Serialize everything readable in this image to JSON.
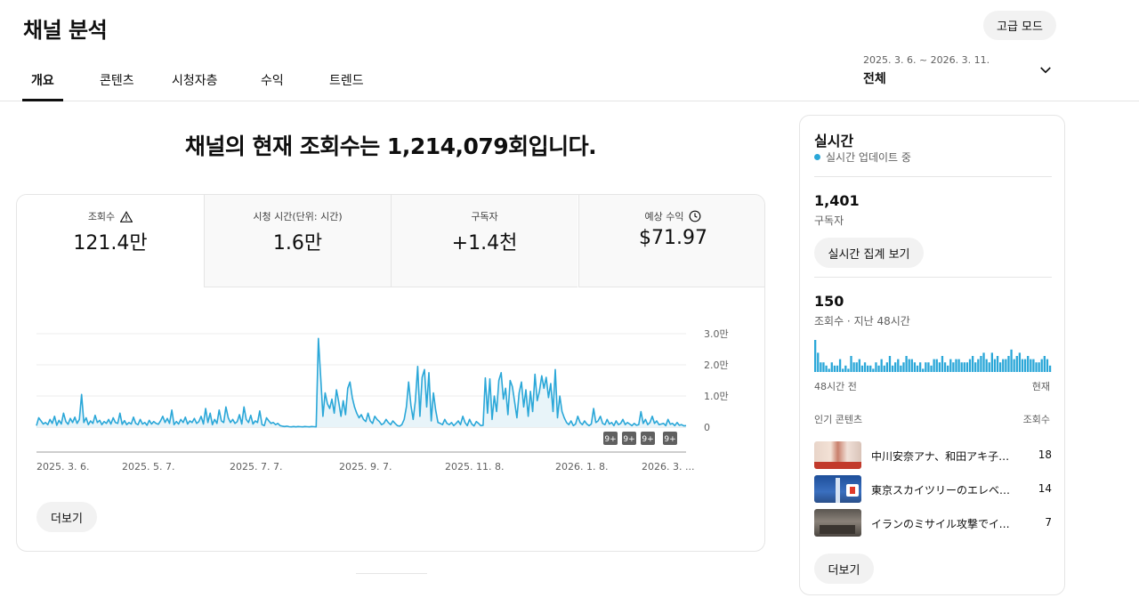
{
  "header": {
    "title": "채널 분석",
    "advanced_mode": "고급 모드",
    "date_range": "2025. 3. 6. ~ 2026. 3. 11.",
    "date_scope": "전체"
  },
  "tabs": [
    {
      "label": "개요",
      "active": true
    },
    {
      "label": "콘텐츠",
      "active": false
    },
    {
      "label": "시청자층",
      "active": false
    },
    {
      "label": "수익",
      "active": false
    },
    {
      "label": "트렌드",
      "active": false
    }
  ],
  "headline": "채널의 현재 조회수는 1,214,079회입니다.",
  "metrics": [
    {
      "label": "조회수",
      "value": "121.4만",
      "icon": "warning-icon"
    },
    {
      "label": "시청 시간(단위: 시간)",
      "value": "1.6만",
      "icon": ""
    },
    {
      "label": "구독자",
      "value": "+1.4천",
      "icon": ""
    },
    {
      "label": "예상 수익",
      "value": "$71.97",
      "icon": "clock-icon"
    }
  ],
  "chart_data": {
    "type": "area",
    "x_tick_labels": [
      "2025. 3. 6.",
      "2025. 5. 7.",
      "2025. 7. 7.",
      "2025. 9. 7.",
      "2025. 11. 8.",
      "2026. 1. 8.",
      "2026. 3. ..."
    ],
    "y_tick_labels": [
      "3.0만",
      "2.0만",
      "1.0만",
      "0"
    ],
    "ylim": [
      0,
      30000
    ],
    "series": [
      {
        "values": [
          500,
          3000,
          2000,
          1000,
          1500,
          800,
          2500,
          1200,
          3500,
          600,
          2200,
          1000,
          4500,
          1800,
          900,
          2800,
          1500,
          3200,
          1200,
          2500,
          10500,
          1500,
          3000,
          800,
          2000,
          1200,
          3800,
          1500,
          2200,
          800,
          1800,
          1200,
          2500,
          1000,
          3000,
          1500,
          1200,
          4500,
          900,
          2100,
          800,
          1500,
          1000,
          3200,
          1200,
          800,
          2500,
          1000,
          1500,
          600,
          2200,
          1000,
          1800,
          1200,
          900,
          2000,
          3500,
          1500,
          2800,
          1200,
          5500,
          800,
          1800,
          1000,
          2500,
          1500,
          3200,
          1000,
          2000,
          1500,
          2800,
          1200,
          1800,
          3500,
          1000,
          6000,
          1500,
          4500,
          800,
          2500,
          1200,
          5500,
          2000,
          1500,
          6500,
          3000,
          1500,
          2500,
          1200,
          1800,
          4000,
          1000,
          6500,
          2500,
          1500,
          3800,
          1000,
          2000,
          1500,
          5200,
          800,
          500,
          3000,
          2000,
          1200,
          1500,
          800,
          1200,
          500,
          300,
          200,
          300,
          150,
          100,
          200,
          100,
          200,
          150,
          100,
          200,
          150,
          100,
          200,
          150,
          100,
          28500,
          16000,
          3500,
          11000,
          7500,
          6000,
          9000,
          4500,
          12000,
          8000,
          3500,
          8500,
          4000,
          12500,
          14500,
          9500,
          6500,
          4500,
          3000,
          4000,
          2500,
          1800,
          4500,
          2000,
          1200,
          3500,
          2500,
          1800,
          800,
          1200,
          2500,
          1500,
          800,
          2000,
          1200,
          500,
          300,
          800,
          2500,
          6500,
          14500,
          7000,
          2500,
          8500,
          19500,
          3500,
          16000,
          18500,
          6500,
          17500,
          2000,
          11000,
          5500,
          1500,
          1200,
          800,
          2500,
          1200,
          800,
          1500,
          500,
          1200,
          2000,
          800,
          3500,
          1500,
          500,
          2500,
          1000,
          400,
          1800,
          1200,
          500,
          600,
          15800,
          4500,
          15500,
          2500,
          10000,
          5000,
          15000,
          17500,
          9000,
          12500,
          4000,
          15000,
          13000,
          8000,
          3000,
          11000,
          14500,
          6500,
          12000,
          3500,
          11500,
          5000,
          17000,
          8500,
          11500,
          16500,
          12500,
          16000,
          9500,
          14000,
          5000,
          18500,
          3000,
          10000,
          5000,
          3000,
          1500,
          800,
          2000,
          500,
          1000,
          3500,
          1500,
          800,
          2000,
          1000,
          500,
          1000,
          6000,
          1500,
          2000,
          3500,
          1200,
          800,
          2500,
          1000,
          1500,
          500,
          2000,
          800,
          1200,
          2500,
          800,
          1500,
          1000,
          500,
          1200,
          600,
          800,
          5000,
          1200,
          2500,
          800,
          1500,
          3500,
          1200,
          2000,
          800,
          1000,
          1200,
          500,
          2500,
          900,
          1200,
          500,
          1500,
          600,
          800,
          400,
          500
        ]
      }
    ],
    "annotations": [
      "9+",
      "9+",
      "9+",
      "9+"
    ]
  },
  "more_label": "더보기",
  "realtime": {
    "title": "실시간",
    "status": "실시간 업데이트 중",
    "subscribers_value": "1,401",
    "subscribers_label": "구독자",
    "view_button": "실시간 집계 보기",
    "views_value": "150",
    "views_label": "조회수 · 지난 48시간",
    "axis_left": "48시간 전",
    "axis_right": "현재",
    "bars": [
      10,
      6,
      3,
      3,
      2,
      1,
      3,
      2,
      2,
      4,
      1,
      2,
      1,
      5,
      3,
      3,
      4,
      2,
      3,
      2,
      2,
      1,
      3,
      2,
      4,
      2,
      3,
      5,
      2,
      3,
      4,
      2,
      3,
      5,
      4,
      4,
      3,
      2,
      3,
      1,
      3,
      3,
      2,
      4,
      4,
      3,
      5,
      3,
      2,
      4,
      3,
      4,
      4,
      3,
      3,
      3,
      4,
      5,
      3,
      4,
      5,
      6,
      4,
      3,
      6,
      4,
      5,
      3,
      4,
      4,
      5,
      7,
      4,
      5,
      6,
      4,
      4,
      5,
      4,
      4,
      3,
      3,
      4,
      5,
      4,
      2
    ]
  },
  "popular": {
    "header_left": "인기 콘텐츠",
    "header_right": "조회수",
    "items": [
      {
        "title": "中川安奈アナ、和田アキ子…",
        "count": "18"
      },
      {
        "title": "東京スカイツリーのエレベ…",
        "count": "14"
      },
      {
        "title": "イランのミサイル攻撃でイス…",
        "count": "7"
      }
    ]
  },
  "colors": {
    "accent": "#2aa7d8",
    "accent_fill": "#e8f4f9"
  }
}
